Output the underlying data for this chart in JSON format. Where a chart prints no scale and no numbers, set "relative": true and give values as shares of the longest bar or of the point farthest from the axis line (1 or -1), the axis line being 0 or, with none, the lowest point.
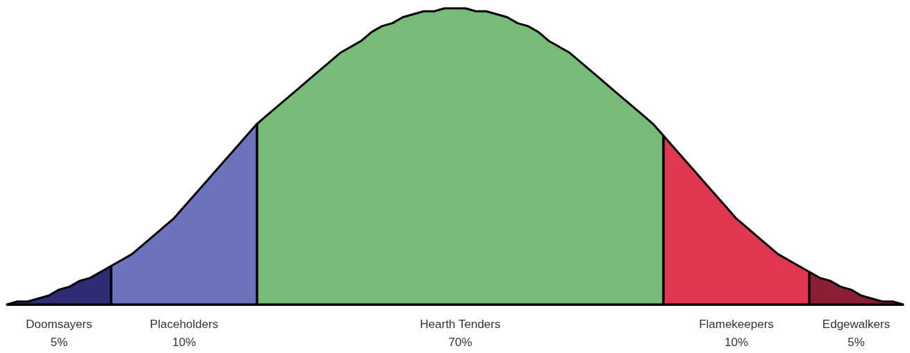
{
  "chart_data": {
    "type": "area",
    "relative": true,
    "tick_labels": false,
    "categories": [
      null,
      null,
      null,
      null,
      null,
      null,
      null,
      null,
      null,
      null,
      null,
      null,
      null,
      null,
      null,
      null,
      null,
      null,
      null,
      null,
      null,
      null,
      null,
      null,
      null,
      null,
      null,
      null,
      null,
      null,
      null,
      null,
      null,
      null,
      null,
      null,
      null,
      null,
      null,
      null,
      null,
      null,
      null,
      null,
      null,
      null,
      null,
      null,
      null,
      null,
      null,
      null,
      null,
      null,
      null,
      null,
      null,
      null,
      null,
      null,
      null,
      null,
      null,
      null,
      null,
      null,
      null,
      null,
      null,
      null,
      null,
      null,
      null,
      null,
      null,
      null,
      null,
      null,
      null,
      null,
      null,
      null,
      null,
      null,
      null,
      null,
      null
    ],
    "series": [
      {
        "name": "Doomsayers",
        "color": "#2e2c74",
        "values": [
          0,
          0.01,
          0.01,
          0.02,
          0.03,
          0.05,
          0.06,
          0.08,
          0.09,
          0.11,
          0.13,
          null,
          null,
          null,
          null,
          null,
          null,
          null,
          null,
          null,
          null,
          null,
          null,
          null,
          null,
          null,
          null,
          null,
          null,
          null,
          null,
          null,
          null,
          null,
          null,
          null,
          null,
          null,
          null,
          null,
          null,
          null,
          null,
          null,
          null,
          null,
          null,
          null,
          null,
          null,
          null,
          null,
          null,
          null,
          null,
          null,
          null,
          null,
          null,
          null,
          null,
          null,
          null,
          null,
          null,
          null,
          null,
          null,
          null,
          null,
          null,
          null,
          null,
          null,
          null,
          null,
          null,
          null,
          null,
          null,
          null,
          null,
          null,
          null,
          null,
          null,
          null
        ]
      },
      {
        "name": "Placeholders",
        "color": "#6c72bb",
        "values": [
          null,
          null,
          null,
          null,
          null,
          null,
          null,
          null,
          null,
          null,
          0.13,
          0.15,
          0.17,
          0.2,
          0.23,
          0.26,
          0.29,
          0.33,
          0.37,
          0.41,
          0.45,
          0.49,
          0.53,
          0.57,
          0.61,
          null,
          null,
          null,
          null,
          null,
          null,
          null,
          null,
          null,
          null,
          null,
          null,
          null,
          null,
          null,
          null,
          null,
          null,
          null,
          null,
          null,
          null,
          null,
          null,
          null,
          null,
          null,
          null,
          null,
          null,
          null,
          null,
          null,
          null,
          null,
          null,
          null,
          null,
          null,
          null,
          null,
          null,
          null,
          null,
          null,
          null,
          null,
          null,
          null,
          null,
          null,
          null,
          null,
          null,
          null,
          null,
          null,
          null,
          null,
          null,
          null,
          null
        ]
      },
      {
        "name": "Hearth Tenders",
        "color": "#78bb78",
        "values": [
          null,
          null,
          null,
          null,
          null,
          null,
          null,
          null,
          null,
          null,
          null,
          null,
          null,
          null,
          null,
          null,
          null,
          null,
          null,
          null,
          null,
          null,
          null,
          null,
          0.61,
          0.64,
          0.67,
          0.7,
          0.73,
          0.76,
          0.79,
          0.82,
          0.85,
          0.87,
          0.89,
          0.92,
          0.94,
          0.95,
          0.97,
          0.98,
          0.99,
          0.99,
          1,
          1,
          1,
          0.99,
          0.99,
          0.98,
          0.97,
          0.95,
          0.94,
          0.92,
          0.89,
          0.87,
          0.85,
          0.82,
          0.79,
          0.76,
          0.73,
          0.7,
          0.67,
          0.64,
          0.61,
          0.57,
          null,
          null,
          null,
          null,
          null,
          null,
          null,
          null,
          null,
          null,
          null,
          null,
          null,
          null,
          null,
          null,
          null,
          null,
          null,
          null,
          null,
          null,
          null
        ]
      },
      {
        "name": "Flamekeepers",
        "color": "#df3750",
        "values": [
          null,
          null,
          null,
          null,
          null,
          null,
          null,
          null,
          null,
          null,
          null,
          null,
          null,
          null,
          null,
          null,
          null,
          null,
          null,
          null,
          null,
          null,
          null,
          null,
          null,
          null,
          null,
          null,
          null,
          null,
          null,
          null,
          null,
          null,
          null,
          null,
          null,
          null,
          null,
          null,
          null,
          null,
          null,
          null,
          null,
          null,
          null,
          null,
          null,
          null,
          null,
          null,
          null,
          null,
          null,
          null,
          null,
          null,
          null,
          null,
          null,
          null,
          null,
          0.57,
          0.53,
          0.49,
          0.45,
          0.41,
          0.37,
          0.33,
          0.29,
          0.26,
          0.23,
          0.2,
          0.17,
          0.15,
          0.13,
          0.11,
          null,
          null,
          null,
          null,
          null,
          null,
          null,
          null,
          null
        ]
      },
      {
        "name": "Edgewalkers",
        "color": "#8a1f33",
        "values": [
          null,
          null,
          null,
          null,
          null,
          null,
          null,
          null,
          null,
          null,
          null,
          null,
          null,
          null,
          null,
          null,
          null,
          null,
          null,
          null,
          null,
          null,
          null,
          null,
          null,
          null,
          null,
          null,
          null,
          null,
          null,
          null,
          null,
          null,
          null,
          null,
          null,
          null,
          null,
          null,
          null,
          null,
          null,
          null,
          null,
          null,
          null,
          null,
          null,
          null,
          null,
          null,
          null,
          null,
          null,
          null,
          null,
          null,
          null,
          null,
          null,
          null,
          null,
          null,
          null,
          null,
          null,
          null,
          null,
          null,
          null,
          null,
          null,
          null,
          null,
          null,
          null,
          0.11,
          0.09,
          0.08,
          0.06,
          0.05,
          0.03,
          0.02,
          0.01,
          0.01,
          0
        ]
      }
    ],
    "annotations": [
      "5%",
      "10%",
      "70%",
      "10%",
      "5%"
    ]
  }
}
